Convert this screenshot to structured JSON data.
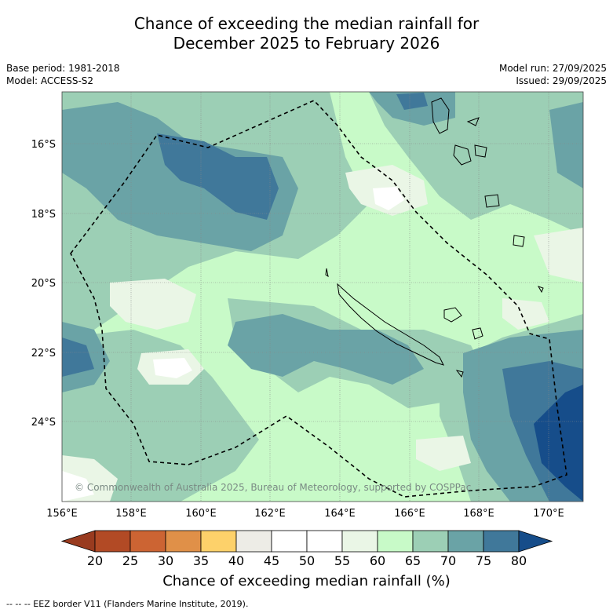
{
  "title": {
    "line1": "Chance of exceeding the median rainfall for",
    "line2": "December 2025 to February 2026"
  },
  "meta_left": {
    "base_period": "Base period: 1981-2018",
    "model": "Model: ACCESS-S2"
  },
  "meta_right": {
    "model_run": "Model run: 27/09/2025",
    "issued": "Issued: 29/09/2025"
  },
  "copyright": "© Commonwealth of Australia 2025, Bureau of Meteorology, supported by COSPPac",
  "axes": {
    "lon_labels": [
      "156°E",
      "158°E",
      "160°E",
      "162°E",
      "164°E",
      "166°E",
      "168°E",
      "170°E"
    ],
    "lat_labels": [
      "16°S",
      "18°S",
      "20°S",
      "22°S",
      "24°S"
    ]
  },
  "colorbar": {
    "ticks": [
      "20",
      "25",
      "30",
      "35",
      "40",
      "45",
      "50",
      "55",
      "60",
      "65",
      "70",
      "75",
      "80"
    ],
    "colors": [
      "#b24a25",
      "#cc6433",
      "#e09048",
      "#fdd16a",
      "#edece6",
      "#ffffff",
      "#ffffff",
      "#eaf6e6",
      "#c8fac8",
      "#9ccfb5",
      "#6aa3a6",
      "#40789a"
    ],
    "under_color": "#993b1f",
    "over_color": "#164d8a",
    "title": "Chance of exceeding median rainfall (%)"
  },
  "footnote": "--  --  -- EEZ border V11 (Flanders Marine Institute, 2019).",
  "map_colors": {
    "c60": "#c8fac8",
    "c65": "#9ccfb5",
    "c70": "#6aa3a6",
    "c75": "#40789a",
    "c80": "#164d8a",
    "c55": "#eaf6e6",
    "c50": "#ffffff"
  }
}
